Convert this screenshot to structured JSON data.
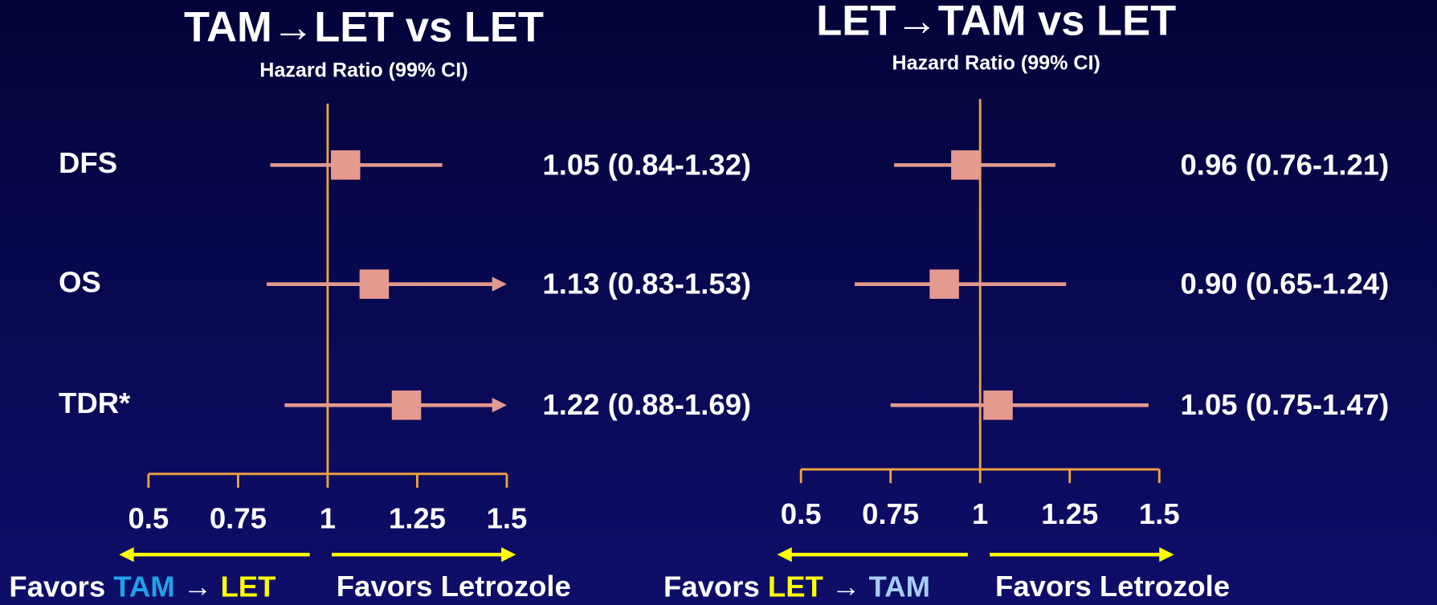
{
  "chart_data": [
    {
      "type": "forest",
      "title": "TAM→LET vs LET",
      "subtitle": "Hazard Ratio (99% CI)",
      "categories": [
        "DFS",
        "OS",
        "TDR*"
      ],
      "values": [
        1.05,
        1.13,
        1.22
      ],
      "lower": [
        0.84,
        0.83,
        0.88
      ],
      "upper": [
        1.32,
        1.53,
        1.69
      ],
      "value_labels": [
        "1.05 (0.84-1.32)",
        "1.13 (0.83-1.53)",
        "1.22 (0.88-1.69)"
      ],
      "color": "#e59a8f",
      "axis_color": "#f0a040",
      "xlim": [
        0.5,
        1.5
      ],
      "xticks": [
        0.5,
        0.75,
        1,
        1.25,
        1.5
      ],
      "favors_left": [
        "Favors",
        "TAM",
        "→",
        "LET"
      ],
      "favors_left_colors": [
        "#ffffff",
        "#1fa3e8",
        "#ffffff",
        "#ffff00"
      ],
      "favors_right": "Favors Letrozole",
      "arrow_color": "#ffff00"
    },
    {
      "type": "forest",
      "title": "LET→TAM vs LET",
      "subtitle": "Hazard Ratio (99% CI)",
      "values": [
        0.96,
        0.9,
        1.05
      ],
      "lower": [
        0.76,
        0.65,
        0.75
      ],
      "upper": [
        1.21,
        1.24,
        1.47
      ],
      "value_labels": [
        "0.96 (0.76-1.21)",
        "0.90 (0.65-1.24)",
        "1.05 (0.75-1.47)"
      ],
      "color": "#e59a8f",
      "axis_color": "#f0a040",
      "xlim": [
        0.5,
        1.5
      ],
      "xticks": [
        0.5,
        0.75,
        1,
        1.25,
        1.5
      ],
      "favors_left": [
        "Favors",
        "LET",
        "→",
        "TAM"
      ],
      "favors_left_colors": [
        "#ffffff",
        "#ffff00",
        "#ffffff",
        "#a8cdf5"
      ],
      "favors_right": "Favors Letrozole",
      "arrow_color": "#ffff00"
    }
  ]
}
